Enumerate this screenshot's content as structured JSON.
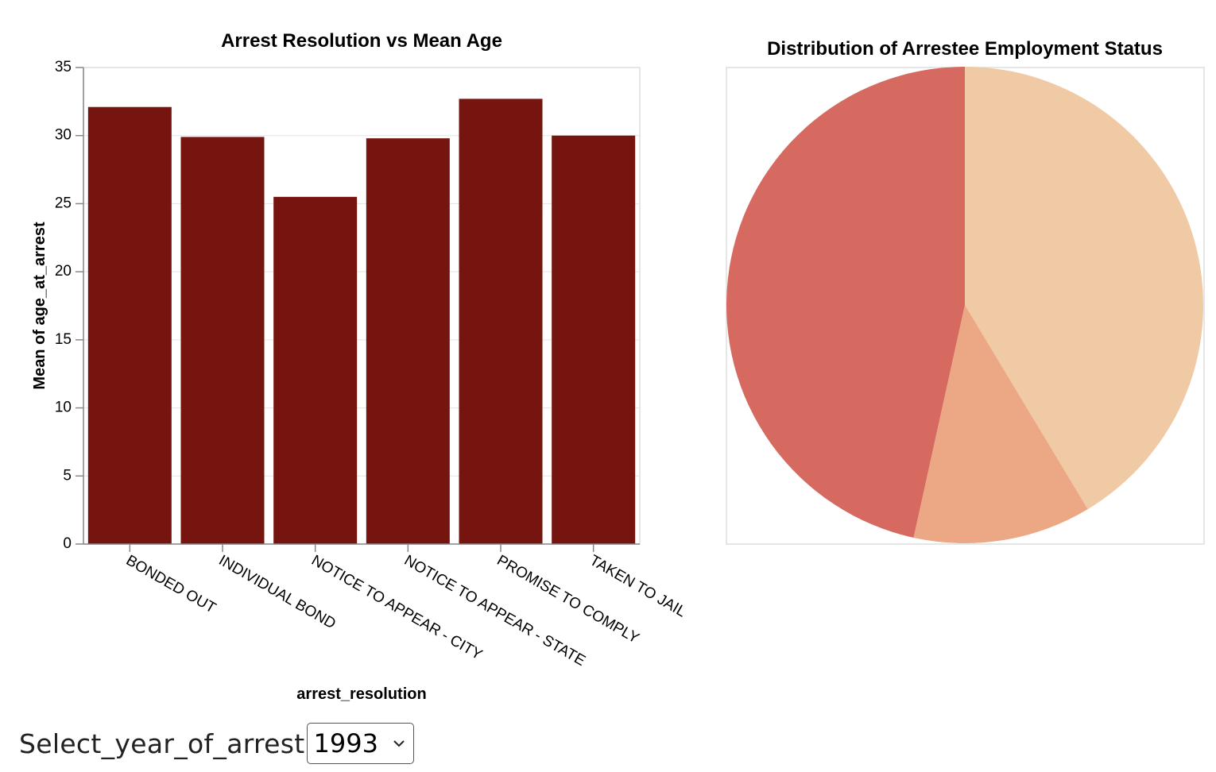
{
  "charts": {
    "bar": {
      "title": "Arrest Resolution vs Mean Age",
      "xlabel": "arrest_resolution",
      "ylabel": "Mean of age_at_arrest"
    },
    "pie": {
      "title": "Distribution of Arrestee Employment Status"
    }
  },
  "controls": {
    "year_label": "Select_year_of_arrest",
    "year_value": "1993"
  },
  "icons": {
    "dropdown": "chevron-down-icon"
  },
  "chart_data": [
    {
      "type": "bar",
      "title": "Arrest Resolution vs Mean Age",
      "xlabel": "arrest_resolution",
      "ylabel": "Mean of age_at_arrest",
      "categories": [
        "BONDED OUT",
        "INDIVIDUAL BOND",
        "NOTICE TO APPEAR - CITY",
        "NOTICE TO APPEAR - STATE",
        "PROMISE TO COMPLY",
        "TAKEN TO JAIL"
      ],
      "values": [
        32.1,
        29.9,
        25.5,
        29.8,
        32.7,
        30.0
      ],
      "ylim": [
        0,
        35
      ],
      "yticks": [
        0,
        5,
        10,
        15,
        20,
        25,
        30,
        35
      ],
      "grid": true,
      "color": "#76140f"
    },
    {
      "type": "pie",
      "title": "Distribution of Arrestee Employment Status",
      "values": [
        0.4138,
        0.1207,
        0.4655
      ],
      "colors": [
        "#f0c9a5",
        "#eca884",
        "#d66a61"
      ]
    }
  ]
}
